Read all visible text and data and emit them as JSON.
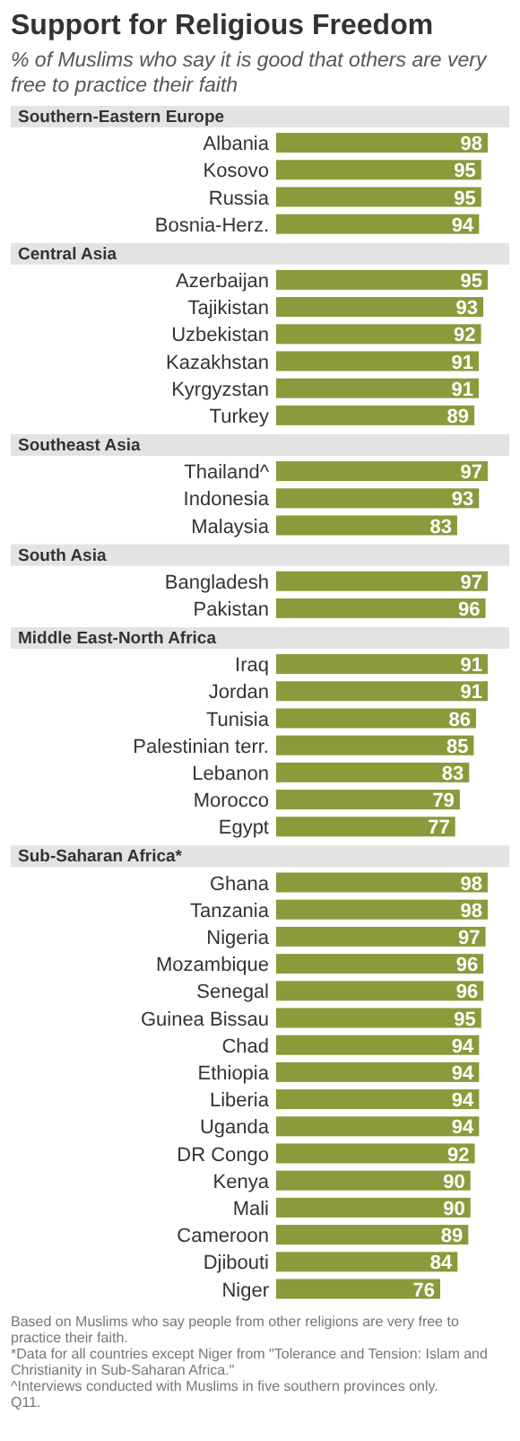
{
  "chart_data": [
    {
      "type": "other",
      "title": "Support for Religious Freedom",
      "subtitle": "% of Muslims who say it is good that others are very free to practice their faith"
    },
    {
      "type": "bar",
      "orientation": "horizontal",
      "title": "Southern-Eastern  Europe",
      "categories": [
        "Albania",
        "Kosovo",
        "Russia",
        "Bosnia-Herz."
      ],
      "values": [
        98,
        95,
        95,
        94
      ],
      "color": "#8c9a3c",
      "data_labels": true
    },
    {
      "type": "bar",
      "orientation": "horizontal",
      "title": "Central Asia",
      "categories": [
        "Azerbaijan",
        "Tajikistan",
        "Uzbekistan",
        "Kazakhstan",
        "Kyrgyzstan",
        "Turkey"
      ],
      "values": [
        95,
        93,
        92,
        91,
        91,
        89
      ],
      "color": "#8c9a3c",
      "data_labels": true
    },
    {
      "type": "bar",
      "orientation": "horizontal",
      "title": "Southeast Asia",
      "categories": [
        "Thailand^",
        "Indonesia",
        "Malaysia"
      ],
      "values": [
        97,
        93,
        83
      ],
      "color": "#8c9a3c",
      "data_labels": true
    },
    {
      "type": "bar",
      "orientation": "horizontal",
      "title": "South Asia",
      "categories": [
        "Bangladesh",
        "Pakistan"
      ],
      "values": [
        97,
        96
      ],
      "color": "#8c9a3c",
      "data_labels": true
    },
    {
      "type": "bar",
      "orientation": "horizontal",
      "title": "Middle East-North Africa",
      "categories": [
        "Iraq",
        "Jordan",
        "Tunisia",
        "Palestinian terr.",
        "Lebanon",
        "Morocco",
        "Egypt"
      ],
      "values": [
        91,
        91,
        86,
        85,
        83,
        79,
        77
      ],
      "color": "#8c9a3c",
      "data_labels": true
    },
    {
      "type": "bar",
      "orientation": "horizontal",
      "title": "Sub-Saharan Africa*",
      "categories": [
        "Ghana",
        "Tanzania",
        "Nigeria",
        "Mozambique",
        "Senegal",
        "Guinea Bissau",
        "Chad",
        "Ethiopia",
        "Liberia",
        "Uganda",
        "DR Congo",
        "Kenya",
        "Mali",
        "Cameroon",
        "Djibouti",
        "Niger"
      ],
      "values": [
        98,
        98,
        97,
        96,
        96,
        95,
        94,
        94,
        94,
        94,
        92,
        90,
        90,
        89,
        84,
        76
      ],
      "color": "#8c9a3c",
      "data_labels": true
    },
    {
      "type": "other",
      "annotations": [
        "Based on Muslims who say people from other religions are very free to practice their faith.",
        "*Data for all countries except Niger from \"Tolerance and Tension: Islam and Christianity in Sub-Saharan Africa.\"",
        "^Interviews conducted with Muslims in five southern provinces only.",
        "Q11."
      ]
    }
  ]
}
